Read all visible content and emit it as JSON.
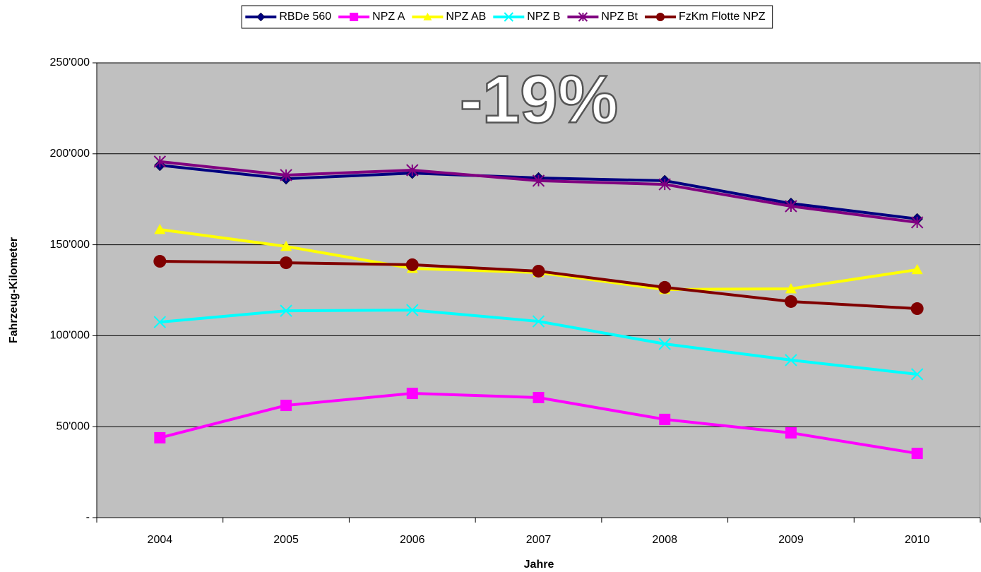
{
  "chart_data": {
    "type": "line",
    "annotation": "-19%",
    "xlabel": "Jahre",
    "ylabel": "Fahrzeug-Kilometer",
    "categories": [
      "2004",
      "2005",
      "2006",
      "2007",
      "2008",
      "2009",
      "2010"
    ],
    "series": [
      {
        "name": "RBDe 560",
        "color": "#000080",
        "marker": "diamond",
        "values": [
          193700,
          186300,
          189400,
          186700,
          185200,
          172700,
          164200
        ]
      },
      {
        "name": "NPZ A",
        "color": "#ff00ff",
        "marker": "square",
        "values": [
          43900,
          61700,
          68300,
          66000,
          54000,
          46600,
          35300
        ]
      },
      {
        "name": "NPZ AB",
        "color": "#ffff00",
        "marker": "triangle",
        "values": [
          158400,
          149100,
          137000,
          134700,
          125400,
          125800,
          136300
        ]
      },
      {
        "name": "NPZ B",
        "color": "#00ffff",
        "marker": "x",
        "values": [
          107500,
          113700,
          114100,
          107900,
          95500,
          86600,
          78800
        ]
      },
      {
        "name": "NPZ Bt",
        "color": "#800080",
        "marker": "star",
        "values": [
          195700,
          188300,
          191000,
          185200,
          183200,
          171200,
          162300
        ]
      },
      {
        "name": "FzKm Flotte NPZ",
        "color": "#800000",
        "marker": "circle",
        "values": [
          140900,
          140100,
          139000,
          135500,
          126600,
          118800,
          114900
        ]
      }
    ],
    "ylim": [
      0,
      250000
    ],
    "yticks": [
      {
        "value": 0,
        "label": "-"
      },
      {
        "value": 50000,
        "label": "50'000"
      },
      {
        "value": 100000,
        "label": "100'000"
      },
      {
        "value": 150000,
        "label": "150'000"
      },
      {
        "value": 200000,
        "label": "200'000"
      },
      {
        "value": 250000,
        "label": "250'000"
      }
    ],
    "grid": true,
    "legend": "top",
    "plot_background": "#c0c0c0"
  }
}
